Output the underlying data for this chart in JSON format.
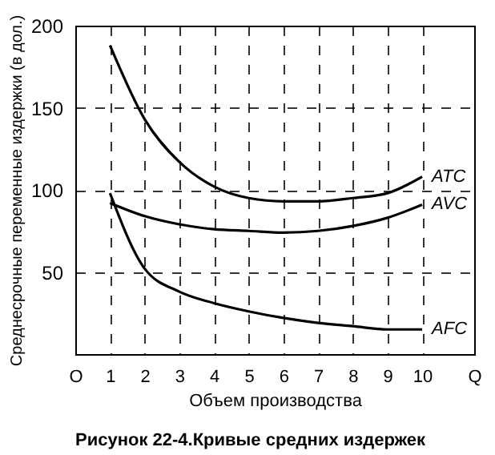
{
  "chart_data": {
    "type": "line",
    "title": "Рисунок 22-4.Кривые средних издержек",
    "xlabel": "Объем производства",
    "ylabel": "Среднесрочные переменные издержки (в дол.)",
    "x": [
      1,
      2,
      3,
      4,
      5,
      6,
      7,
      8,
      9,
      10
    ],
    "series": [
      {
        "name": "ATC",
        "color": "#000000",
        "values": [
          188,
          143,
          117,
          102,
          95,
          93,
          93,
          95,
          98,
          108
        ]
      },
      {
        "name": "AVC",
        "color": "#000000",
        "values": [
          92,
          84,
          79,
          76,
          75,
          74,
          75,
          78,
          83,
          91
        ]
      },
      {
        "name": "AFC",
        "color": "#000000",
        "values": [
          98,
          52,
          38,
          31,
          26,
          22,
          19,
          17,
          15,
          15
        ]
      }
    ],
    "xlim": [
      0,
      11.5
    ],
    "xticks": [
      {
        "value": 0,
        "label": "O"
      },
      1,
      2,
      3,
      4,
      5,
      6,
      7,
      8,
      9,
      10,
      {
        "value": 11.5,
        "label": "Q"
      }
    ],
    "ylim": [
      0,
      200
    ],
    "yticks": [
      50,
      100,
      150,
      200
    ],
    "grid": true,
    "line_style": "solid",
    "marker": "none",
    "legend": false
  }
}
